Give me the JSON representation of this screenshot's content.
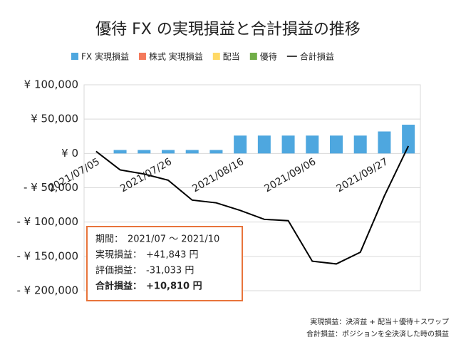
{
  "chart_data": {
    "type": "bar",
    "title": "優待 FX の実現損益と合計損益の推移",
    "categories": [
      "2021/07/05",
      null,
      null,
      "2021/07/26",
      null,
      null,
      "2021/08/16",
      null,
      null,
      "2021/09/06",
      null,
      null,
      "2021/09/27",
      null
    ],
    "series": [
      {
        "name": "FX 実現損益",
        "color": "#4ea7df",
        "type": "bar",
        "values": [
          0,
          5000,
          5000,
          5000,
          5000,
          5000,
          26000,
          26000,
          26000,
          26000,
          26000,
          26000,
          32000,
          41843
        ]
      },
      {
        "name": "株式 実現損益",
        "color": "#f4795b",
        "type": "bar",
        "values": [
          0,
          0,
          0,
          0,
          0,
          0,
          0,
          0,
          0,
          0,
          0,
          0,
          0,
          0
        ]
      },
      {
        "name": "配当",
        "color": "#ffd966",
        "type": "bar",
        "values": [
          0,
          0,
          0,
          0,
          0,
          0,
          0,
          0,
          0,
          0,
          0,
          0,
          0,
          0
        ]
      },
      {
        "name": "優待",
        "color": "#70ad47",
        "type": "bar",
        "values": [
          0,
          0,
          0,
          0,
          0,
          0,
          0,
          0,
          0,
          0,
          0,
          0,
          0,
          0
        ]
      },
      {
        "name": "合計損益",
        "color": "#000000",
        "type": "line",
        "values": [
          3000,
          -24000,
          -30000,
          -39000,
          -68000,
          -72000,
          -83000,
          -96000,
          -98000,
          -157000,
          -161000,
          -144000,
          -62000,
          10810
        ]
      }
    ],
    "ylim": [
      -200000,
      100000
    ],
    "yticks": [
      {
        "value": -200000,
        "label": "- ¥ 200,000"
      },
      {
        "value": -150000,
        "label": "- ¥ 150,000"
      },
      {
        "value": -100000,
        "label": "- ¥ 100,000"
      },
      {
        "value": -50000,
        "label": "- ¥ 50,000"
      },
      {
        "value": 0,
        "label": "¥ 0"
      },
      {
        "value": 50000,
        "label": "¥ 50,000"
      },
      {
        "value": 100000,
        "label": "¥ 100,000"
      }
    ],
    "grid": true,
    "legend": "top",
    "summary": [
      {
        "label": "期間：",
        "value": "2021/07 ～ 2021/10"
      },
      {
        "label": "実現損益：",
        "value": "+41,843 円"
      },
      {
        "label": "評価損益：",
        "value": "-31,033 円"
      },
      {
        "label": "合計損益：",
        "value": "+10,810 円"
      }
    ],
    "notes": [
      "実現損益：決済益 + 配当＋優待＋スワップ",
      "合計損益：ポジションを全決済した時の損益"
    ]
  }
}
